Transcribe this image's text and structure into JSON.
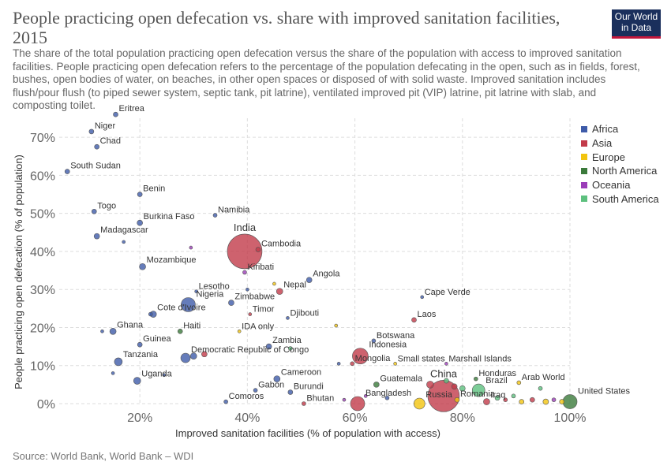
{
  "header": {
    "title": "People practicing open defecation vs. share with improved sanitation facilities, 2015",
    "subtitle": "The share of the total population practicing open defecation versus the share of the population with access to improved sanitation facilities. People practicing open defecation refers to the percentage of the population defecating in the open, such as in fields, forest, bushes, open bodies of water, on beaches, in other open spaces or disposed of with solid waste. Improved sanitation includes flush/pour flush (to piped sewer system, septic tank, pit latrine), ventilated improved pit (VIP) latrine, pit latrine with slab, and composting toilet.",
    "logo_line1": "Our World",
    "logo_line2": "in Data"
  },
  "source": "Source: World Bank, World Bank – WDI",
  "chart_data": {
    "type": "scatter",
    "title": "People practicing open defecation vs. share with improved sanitation facilities, 2015",
    "xlabel": "Improved sanitation facilities (% of population with access)",
    "ylabel": "People practicing open defecation (% of population)",
    "xlim": [
      5,
      100
    ],
    "ylim": [
      0,
      75
    ],
    "x_ticks": [
      20,
      40,
      60,
      80,
      100
    ],
    "x_tick_labels": [
      "20%",
      "40%",
      "60%",
      "80%",
      "100%"
    ],
    "y_ticks": [
      0,
      10,
      20,
      30,
      40,
      50,
      60,
      70
    ],
    "y_tick_labels": [
      "0%",
      "10%",
      "20%",
      "30%",
      "40%",
      "50%",
      "60%",
      "70%"
    ],
    "grid": true,
    "legend_position": "right",
    "series": [
      {
        "name": "Africa",
        "color": "#3e5ba9"
      },
      {
        "name": "Asia",
        "color": "#c23b4a"
      },
      {
        "name": "Europe",
        "color": "#f2c40f"
      },
      {
        "name": "North America",
        "color": "#3b7a3b"
      },
      {
        "name": "Oceania",
        "color": "#9b3db8"
      },
      {
        "name": "South America",
        "color": "#5dc07e"
      }
    ],
    "points": [
      {
        "label": "Eritrea",
        "x": 15.5,
        "y": 76,
        "region": "Africa",
        "r": 3,
        "show_label": true
      },
      {
        "label": "Niger",
        "x": 11,
        "y": 71.5,
        "region": "Africa",
        "r": 3,
        "show_label": true
      },
      {
        "label": "Chad",
        "x": 12,
        "y": 67.5,
        "region": "Africa",
        "r": 3,
        "show_label": true
      },
      {
        "label": "South Sudan",
        "x": 6.5,
        "y": 61,
        "region": "Africa",
        "r": 3,
        "show_label": true
      },
      {
        "label": "Benin",
        "x": 20,
        "y": 55,
        "region": "Africa",
        "r": 3,
        "show_label": true
      },
      {
        "label": "Togo",
        "x": 11.5,
        "y": 50.5,
        "region": "Africa",
        "r": 3,
        "show_label": true
      },
      {
        "label": "Burkina Faso",
        "x": 20,
        "y": 47.5,
        "region": "Africa",
        "r": 3.5,
        "show_label": true
      },
      {
        "label": "Namibia",
        "x": 34,
        "y": 49.5,
        "region": "Africa",
        "r": 2.5,
        "show_label": true
      },
      {
        "label": "Madagascar",
        "x": 12,
        "y": 44,
        "region": "Africa",
        "r": 3.5,
        "show_label": true
      },
      {
        "label": "India",
        "x": 39.5,
        "y": 40,
        "region": "Asia",
        "r": 22,
        "show_label": true
      },
      {
        "label": "Cambodia",
        "x": 42,
        "y": 40.5,
        "region": "Asia",
        "r": 3,
        "show_label": true
      },
      {
        "label": "Mozambique",
        "x": 20.5,
        "y": 36,
        "region": "Africa",
        "r": 4,
        "show_label": true
      },
      {
        "label": "Kiribati",
        "x": 39.5,
        "y": 34.5,
        "region": "Oceania",
        "r": 2.5,
        "show_label": true
      },
      {
        "label": "Angola",
        "x": 51.5,
        "y": 32.5,
        "region": "Africa",
        "r": 3.5,
        "show_label": true
      },
      {
        "label": "Nepal",
        "x": 46,
        "y": 29.5,
        "region": "Asia",
        "r": 4,
        "show_label": true
      },
      {
        "label": "Lesotho",
        "x": 30.5,
        "y": 29.5,
        "region": "Africa",
        "r": 2,
        "show_label": true
      },
      {
        "label": "Nigeria",
        "x": 29,
        "y": 26,
        "region": "Africa",
        "r": 9,
        "show_label": true
      },
      {
        "label": "Zimbabwe",
        "x": 37,
        "y": 26.5,
        "region": "Africa",
        "r": 3.5,
        "show_label": true
      },
      {
        "label": "Timor",
        "x": 40.5,
        "y": 23.5,
        "region": "Asia",
        "r": 2,
        "show_label": true
      },
      {
        "label": "Cote d'Ivoire",
        "x": 22.5,
        "y": 23.5,
        "region": "Africa",
        "r": 4,
        "show_label": true
      },
      {
        "label": "Djibouti",
        "x": 47.5,
        "y": 22.5,
        "region": "Africa",
        "r": 2,
        "show_label": true
      },
      {
        "label": "Cape Verde",
        "x": 72.5,
        "y": 28,
        "region": "Africa",
        "r": 2,
        "show_label": true
      },
      {
        "label": "Laos",
        "x": 71,
        "y": 22,
        "region": "Asia",
        "r": 3,
        "show_label": true
      },
      {
        "label": "Ghana",
        "x": 15,
        "y": 19,
        "region": "Africa",
        "r": 4,
        "show_label": true
      },
      {
        "label": "Haiti",
        "x": 27.5,
        "y": 19,
        "region": "North America",
        "r": 3,
        "show_label": true
      },
      {
        "label": "IDA only",
        "x": 38.5,
        "y": 19,
        "region": "Europe",
        "r": 2,
        "show_label": true
      },
      {
        "label": "Botswana",
        "x": 63.5,
        "y": 16.5,
        "region": "Africa",
        "r": 2.5,
        "show_label": true
      },
      {
        "label": "Guinea",
        "x": 20,
        "y": 15.5,
        "region": "Africa",
        "r": 3,
        "show_label": true
      },
      {
        "label": "Zambia",
        "x": 44,
        "y": 15,
        "region": "Africa",
        "r": 3.5,
        "show_label": true
      },
      {
        "label": "Indonesia",
        "x": 61,
        "y": 12.5,
        "region": "Asia",
        "r": 10,
        "show_label": true
      },
      {
        "label": "Democratic Republic of Congo",
        "x": 28.5,
        "y": 12,
        "region": "Africa",
        "r": 6,
        "show_label": true
      },
      {
        "label": "Tanzania",
        "x": 16,
        "y": 11,
        "region": "Africa",
        "r": 5,
        "show_label": true
      },
      {
        "label": "Mongolia",
        "x": 59.5,
        "y": 10.5,
        "region": "Asia",
        "r": 2.5,
        "show_label": true
      },
      {
        "label": "Small states",
        "x": 67.5,
        "y": 10.5,
        "region": "Europe",
        "r": 2,
        "show_label": true
      },
      {
        "label": "Marshall Islands",
        "x": 77,
        "y": 10.5,
        "region": "Oceania",
        "r": 2,
        "show_label": true
      },
      {
        "label": "Uganda",
        "x": 19.5,
        "y": 6,
        "region": "Africa",
        "r": 4.5,
        "show_label": true
      },
      {
        "label": "Cameroon",
        "x": 45.5,
        "y": 6.5,
        "region": "Africa",
        "r": 4,
        "show_label": true
      },
      {
        "label": "Honduras",
        "x": 82.5,
        "y": 6.5,
        "region": "North America",
        "r": 2.5,
        "show_label": true
      },
      {
        "label": "Arab World",
        "x": 90.5,
        "y": 5.5,
        "region": "Europe",
        "r": 2.5,
        "show_label": true
      },
      {
        "label": "China",
        "x": 76.5,
        "y": 2,
        "region": "Asia",
        "r": 20,
        "show_label": true
      },
      {
        "label": "Guatemala",
        "x": 64,
        "y": 5,
        "region": "North America",
        "r": 3.5,
        "show_label": true
      },
      {
        "label": "Gabon",
        "x": 41.5,
        "y": 3.5,
        "region": "Africa",
        "r": 2.5,
        "show_label": true
      },
      {
        "label": "Burundi",
        "x": 48,
        "y": 3,
        "region": "Africa",
        "r": 3,
        "show_label": true
      },
      {
        "label": "Brazil",
        "x": 83,
        "y": 3.5,
        "region": "South America",
        "r": 8,
        "show_label": true
      },
      {
        "label": "Romania",
        "x": 79,
        "y": 1,
        "region": "Europe",
        "r": 3,
        "show_label": true
      },
      {
        "label": "Iraq",
        "x": 84.5,
        "y": 0.5,
        "region": "Asia",
        "r": 4,
        "show_label": true
      },
      {
        "label": "United States",
        "x": 100,
        "y": 0.5,
        "region": "North America",
        "r": 9,
        "show_label": true
      },
      {
        "label": "Comoros",
        "x": 36,
        "y": 0.5,
        "region": "Africa",
        "r": 2.5,
        "show_label": true
      },
      {
        "label": "Bhutan",
        "x": 50.5,
        "y": 0,
        "region": "Asia",
        "r": 2.5,
        "show_label": true
      },
      {
        "label": "Bangladesh",
        "x": 60.5,
        "y": 0,
        "region": "Asia",
        "r": 9,
        "show_label": true
      },
      {
        "label": "Russia",
        "x": 72,
        "y": 0,
        "region": "Europe",
        "r": 7,
        "show_label": true
      },
      {
        "label": "",
        "x": 13,
        "y": 19,
        "region": "Africa",
        "r": 2,
        "show_label": false
      },
      {
        "label": "",
        "x": 17,
        "y": 42.5,
        "region": "Africa",
        "r": 2,
        "show_label": false
      },
      {
        "label": "",
        "x": 29.5,
        "y": 41,
        "region": "Oceania",
        "r": 2,
        "show_label": false
      },
      {
        "label": "",
        "x": 22,
        "y": 23.5,
        "region": "Africa",
        "r": 2.5,
        "show_label": false
      },
      {
        "label": "",
        "x": 30,
        "y": 12.5,
        "region": "Africa",
        "r": 4,
        "show_label": false
      },
      {
        "label": "",
        "x": 32,
        "y": 13,
        "region": "Asia",
        "r": 3.5,
        "show_label": false
      },
      {
        "label": "",
        "x": 15,
        "y": 8,
        "region": "Africa",
        "r": 2,
        "show_label": false
      },
      {
        "label": "",
        "x": 24.5,
        "y": 7.5,
        "region": "Africa",
        "r": 2,
        "show_label": false
      },
      {
        "label": "",
        "x": 40,
        "y": 30,
        "region": "Africa",
        "r": 2,
        "show_label": false
      },
      {
        "label": "",
        "x": 45,
        "y": 31.5,
        "region": "Europe",
        "r": 2,
        "show_label": false
      },
      {
        "label": "",
        "x": 56.5,
        "y": 20.5,
        "region": "Europe",
        "r": 2,
        "show_label": false
      },
      {
        "label": "",
        "x": 48,
        "y": 14.5,
        "region": "South America",
        "r": 2.5,
        "show_label": false
      },
      {
        "label": "",
        "x": 57,
        "y": 10.5,
        "region": "Africa",
        "r": 2,
        "show_label": false
      },
      {
        "label": "",
        "x": 74,
        "y": 5,
        "region": "Asia",
        "r": 4.5,
        "show_label": false
      },
      {
        "label": "",
        "x": 77,
        "y": 6,
        "region": "South America",
        "r": 3,
        "show_label": false
      },
      {
        "label": "",
        "x": 78.5,
        "y": 4.5,
        "region": "Asia",
        "r": 3.5,
        "show_label": false
      },
      {
        "label": "",
        "x": 80,
        "y": 4,
        "region": "South America",
        "r": 3.5,
        "show_label": false
      },
      {
        "label": "",
        "x": 86.5,
        "y": 1.5,
        "region": "South America",
        "r": 3,
        "show_label": false
      },
      {
        "label": "",
        "x": 88,
        "y": 1,
        "region": "Asia",
        "r": 2.5,
        "show_label": false
      },
      {
        "label": "",
        "x": 89.5,
        "y": 2,
        "region": "South America",
        "r": 2.5,
        "show_label": false
      },
      {
        "label": "",
        "x": 91,
        "y": 0.5,
        "region": "Europe",
        "r": 3,
        "show_label": false
      },
      {
        "label": "",
        "x": 93,
        "y": 1,
        "region": "Asia",
        "r": 3,
        "show_label": false
      },
      {
        "label": "",
        "x": 94.5,
        "y": 4,
        "region": "South America",
        "r": 2.5,
        "show_label": false
      },
      {
        "label": "",
        "x": 95.5,
        "y": 0.5,
        "region": "Europe",
        "r": 3.5,
        "show_label": false
      },
      {
        "label": "",
        "x": 97,
        "y": 1,
        "region": "Oceania",
        "r": 2.5,
        "show_label": false
      },
      {
        "label": "",
        "x": 98.5,
        "y": 0.5,
        "region": "Europe",
        "r": 3,
        "show_label": false
      },
      {
        "label": "",
        "x": 62,
        "y": 2,
        "region": "Oceania",
        "r": 2,
        "show_label": false
      },
      {
        "label": "",
        "x": 66,
        "y": 1.5,
        "region": "Africa",
        "r": 2.5,
        "show_label": false
      },
      {
        "label": "",
        "x": 58,
        "y": 1,
        "region": "Oceania",
        "r": 2,
        "show_label": false
      }
    ]
  }
}
